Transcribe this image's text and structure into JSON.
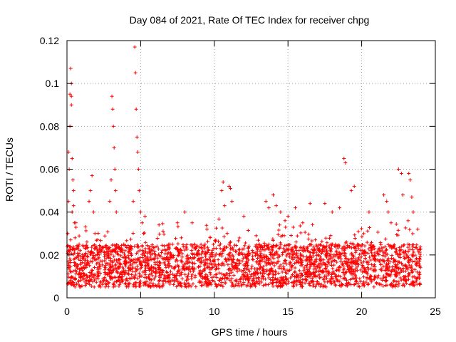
{
  "chart_data": {
    "type": "scatter",
    "title": "Day 084 of 2021, Rate Of TEC Index for receiver chpg",
    "xlabel": "GPS time / hours",
    "ylabel": "ROTI / TECUs",
    "xlim": [
      0,
      25
    ],
    "ylim": [
      0,
      0.12
    ],
    "xticks": [
      0,
      5,
      10,
      15,
      20,
      25
    ],
    "xtick_labels": [
      "0",
      "5",
      "10",
      "15",
      "20",
      "25"
    ],
    "yticks": [
      0,
      0.02,
      0.04,
      0.06,
      0.08,
      0.1,
      0.12
    ],
    "ytick_labels": [
      "0",
      "0.02",
      "0.04",
      "0.06",
      "0.08",
      "0.1",
      "0.12"
    ],
    "grid": true,
    "marker": "+",
    "color": "#ff0000",
    "baseline_band": {
      "x_range": [
        0,
        24
      ],
      "y_range": [
        0.005,
        0.025
      ]
    },
    "series": [
      {
        "name": "ROTI",
        "x": [
          0.05,
          0.1,
          0.15,
          0.2,
          0.25,
          0.3,
          0.3,
          0.35,
          0.4,
          0.45,
          0.5,
          0.1,
          0.2,
          0.3,
          0.35,
          0.45,
          0.55,
          0.6,
          1.5,
          1.6,
          1.7,
          1.8,
          1.9,
          2.9,
          3.0,
          3.05,
          3.1,
          3.15,
          3.2,
          3.25,
          3.3,
          3.35,
          4.5,
          4.6,
          4.65,
          4.7,
          4.75,
          4.8,
          4.85,
          4.9,
          5.0,
          5.1,
          5.2,
          5.3,
          7.5,
          8.0,
          8.5,
          9.5,
          10.5,
          10.6,
          10.7,
          11.0,
          11.1,
          11.2,
          12.0,
          13.5,
          13.7,
          14.0,
          14.2,
          14.5,
          14.8,
          15.0,
          15.5,
          16.0,
          16.5,
          17.5,
          18.0,
          18.5,
          18.8,
          18.9,
          19.3,
          19.5,
          20.5,
          21.5,
          21.7,
          21.8,
          22.0,
          22.5,
          22.7,
          22.8,
          23.2,
          23.3,
          23.4,
          23.5,
          23.8
        ],
        "y": [
          0.03,
          0.045,
          0.06,
          0.095,
          0.107,
          0.1,
          0.09,
          0.065,
          0.055,
          0.043,
          0.035,
          0.068,
          0.08,
          0.094,
          0.04,
          0.05,
          0.028,
          0.035,
          0.045,
          0.05,
          0.057,
          0.04,
          0.03,
          0.045,
          0.055,
          0.094,
          0.088,
          0.08,
          0.07,
          0.06,
          0.05,
          0.04,
          0.045,
          0.117,
          0.105,
          0.088,
          0.075,
          0.068,
          0.06,
          0.05,
          0.04,
          0.035,
          0.03,
          0.038,
          0.035,
          0.04,
          0.035,
          0.032,
          0.05,
          0.054,
          0.043,
          0.052,
          0.051,
          0.045,
          0.038,
          0.045,
          0.042,
          0.048,
          0.043,
          0.04,
          0.036,
          0.038,
          0.042,
          0.035,
          0.044,
          0.044,
          0.04,
          0.042,
          0.065,
          0.063,
          0.05,
          0.052,
          0.04,
          0.048,
          0.045,
          0.04,
          0.035,
          0.06,
          0.058,
          0.048,
          0.058,
          0.055,
          0.047,
          0.04,
          0.032
        ]
      }
    ]
  }
}
